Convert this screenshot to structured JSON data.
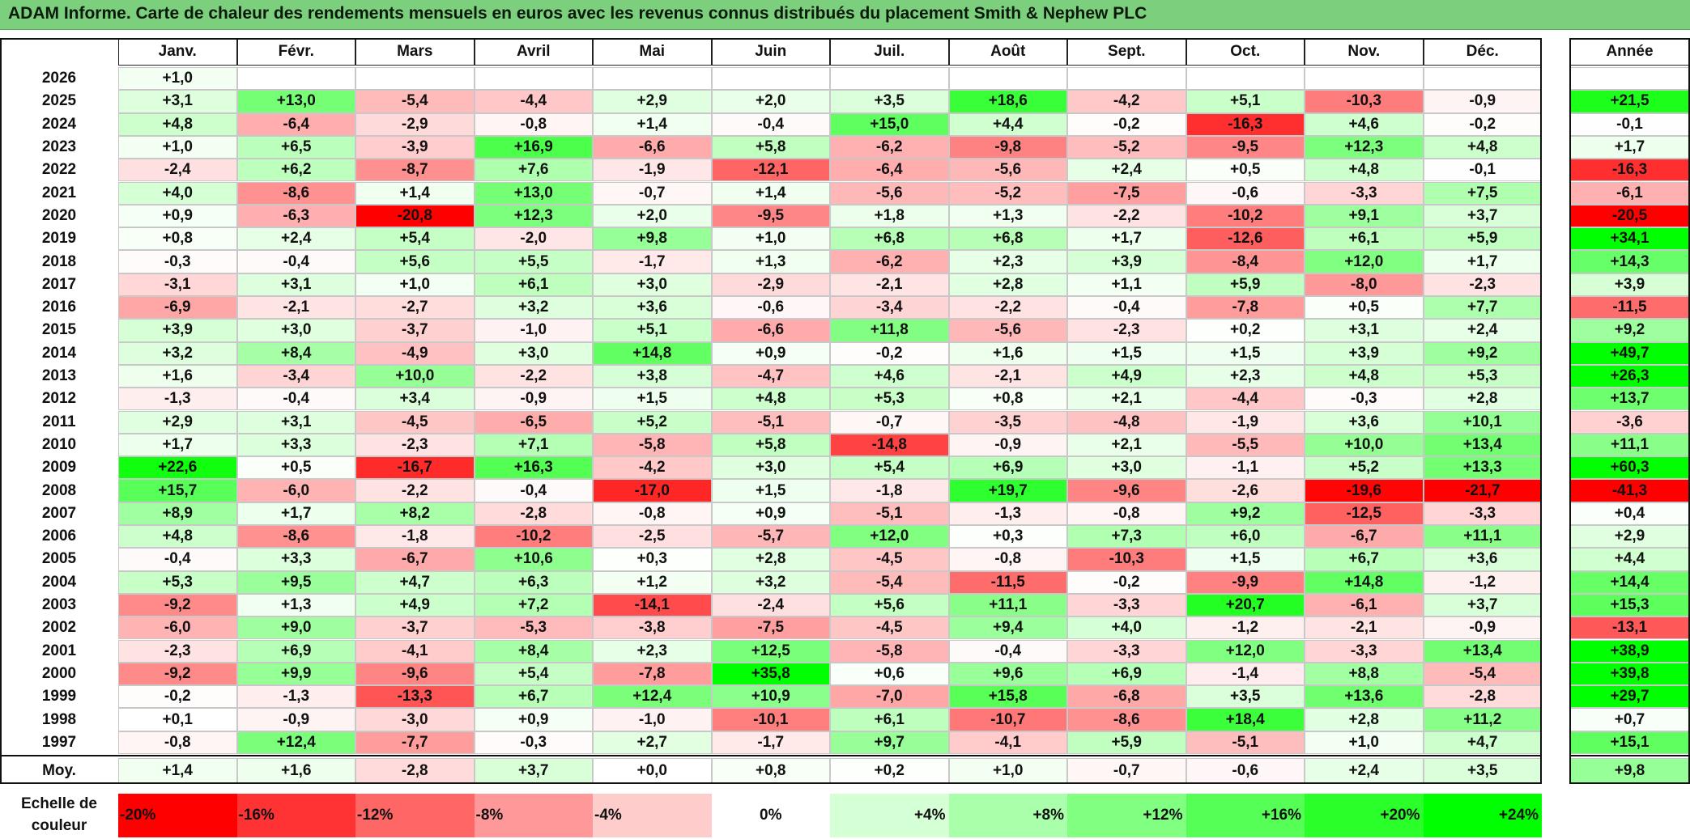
{
  "title": "ADAM Informe. Carte de chaleur des rendements mensuels en euros avec les revenus connus distribués du placement Smith & Nephew PLC",
  "colors": {
    "title_bg": "#7ccf7c",
    "max_red": "#ff0000",
    "max_green": "#00ff00",
    "neutral": "#ffffff"
  },
  "chart_data": {
    "type": "heatmap",
    "months": [
      "Janv.",
      "Févr.",
      "Mars",
      "Avril",
      "Mai",
      "Juin",
      "Juil.",
      "Août",
      "Sept.",
      "Oct.",
      "Nov.",
      "Déc."
    ],
    "year_header": "Année",
    "avg_label": "Moy.",
    "years": [
      "2026",
      "2025",
      "2024",
      "2023",
      "2022",
      "2021",
      "2020",
      "2019",
      "2018",
      "2017",
      "2016",
      "2015",
      "2014",
      "2013",
      "2012",
      "2011",
      "2010",
      "2009",
      "2008",
      "2007",
      "2006",
      "2005",
      "2004",
      "2003",
      "2002",
      "2001",
      "2000",
      "1999",
      "1998",
      "1997"
    ],
    "values": [
      [
        "+1,0",
        "",
        "",
        "",
        "",
        "",
        "",
        "",
        "",
        "",
        "",
        ""
      ],
      [
        "+3,1",
        "+13,0",
        "-5,4",
        "-4,4",
        "+2,9",
        "+2,0",
        "+3,5",
        "+18,6",
        "-4,2",
        "+5,1",
        "-10,3",
        "-0,9"
      ],
      [
        "+4,8",
        "-6,4",
        "-2,9",
        "-0,8",
        "+1,4",
        "-0,4",
        "+15,0",
        "+4,4",
        "-0,2",
        "-16,3",
        "+4,6",
        "-0,2"
      ],
      [
        "+1,0",
        "+6,5",
        "-3,9",
        "+16,9",
        "-6,6",
        "+5,8",
        "-6,2",
        "-9,8",
        "-5,2",
        "-9,5",
        "+12,3",
        "+4,8"
      ],
      [
        "-2,4",
        "+6,2",
        "-8,7",
        "+7,6",
        "-1,9",
        "-12,1",
        "-6,4",
        "-5,6",
        "+2,4",
        "+0,5",
        "+4,8",
        "-0,1"
      ],
      [
        "+4,0",
        "-8,6",
        "+1,4",
        "+13,0",
        "-0,7",
        "+1,4",
        "-5,6",
        "-5,2",
        "-7,5",
        "-0,6",
        "-3,3",
        "+7,5"
      ],
      [
        "+0,9",
        "-6,3",
        "-20,8",
        "+12,3",
        "+2,0",
        "-9,5",
        "+1,8",
        "+1,3",
        "-2,2",
        "-10,2",
        "+9,1",
        "+3,7"
      ],
      [
        "+0,8",
        "+2,4",
        "+5,4",
        "-2,0",
        "+9,8",
        "+1,0",
        "+6,8",
        "+6,8",
        "+1,7",
        "-12,6",
        "+6,1",
        "+5,9"
      ],
      [
        "-0,3",
        "-0,4",
        "+5,6",
        "+5,5",
        "-1,7",
        "+1,3",
        "-6,2",
        "+2,3",
        "+3,9",
        "-8,4",
        "+12,0",
        "+1,7"
      ],
      [
        "-3,1",
        "+3,1",
        "+1,0",
        "+6,1",
        "+3,0",
        "-2,9",
        "-2,1",
        "+2,8",
        "+1,1",
        "+5,9",
        "-8,0",
        "-2,3"
      ],
      [
        "-6,9",
        "-2,1",
        "-2,7",
        "+3,2",
        "+3,6",
        "-0,6",
        "-3,4",
        "-2,2",
        "-0,4",
        "-7,8",
        "+0,5",
        "+7,7"
      ],
      [
        "+3,9",
        "+3,0",
        "-3,7",
        "-1,0",
        "+5,1",
        "-6,6",
        "+11,8",
        "-5,6",
        "-2,3",
        "+0,2",
        "+3,1",
        "+2,4"
      ],
      [
        "+3,2",
        "+8,4",
        "-4,9",
        "+3,0",
        "+14,8",
        "+0,9",
        "-0,2",
        "+1,6",
        "+1,5",
        "+1,5",
        "+3,9",
        "+9,2"
      ],
      [
        "+1,6",
        "-3,4",
        "+10,0",
        "-2,2",
        "+3,8",
        "-4,7",
        "+4,6",
        "-2,1",
        "+4,9",
        "+2,3",
        "+4,8",
        "+5,3"
      ],
      [
        "-1,3",
        "-0,4",
        "+3,4",
        "-0,9",
        "+1,5",
        "+4,8",
        "+5,3",
        "+0,8",
        "+2,1",
        "-4,4",
        "-0,3",
        "+2,8"
      ],
      [
        "+2,9",
        "+3,1",
        "-4,5",
        "-6,5",
        "+5,2",
        "-5,1",
        "-0,7",
        "-3,5",
        "-4,8",
        "-1,9",
        "+3,6",
        "+10,1"
      ],
      [
        "+1,7",
        "+3,3",
        "-2,3",
        "+7,1",
        "-5,8",
        "+5,8",
        "-14,8",
        "-0,9",
        "+2,1",
        "-5,5",
        "+10,0",
        "+13,4"
      ],
      [
        "+22,6",
        "+0,5",
        "-16,7",
        "+16,3",
        "-4,2",
        "+3,0",
        "+5,4",
        "+6,9",
        "+3,0",
        "-1,1",
        "+5,2",
        "+13,3"
      ],
      [
        "+15,7",
        "-6,0",
        "-2,2",
        "-0,4",
        "-17,0",
        "+1,5",
        "-1,8",
        "+19,7",
        "-9,6",
        "-2,6",
        "-19,6",
        "-21,7"
      ],
      [
        "+8,9",
        "+1,7",
        "+8,2",
        "-2,8",
        "-0,8",
        "+0,9",
        "-5,1",
        "-1,3",
        "-0,8",
        "+9,2",
        "-12,5",
        "-3,3"
      ],
      [
        "+4,8",
        "-8,6",
        "-1,8",
        "-10,2",
        "-2,5",
        "-5,7",
        "+12,0",
        "+0,3",
        "+7,3",
        "+6,0",
        "-6,7",
        "+11,1"
      ],
      [
        "-0,4",
        "+3,3",
        "-6,7",
        "+10,6",
        "+0,3",
        "+2,8",
        "-4,5",
        "-0,8",
        "-10,3",
        "+1,5",
        "+6,7",
        "+3,6"
      ],
      [
        "+5,3",
        "+9,5",
        "+4,7",
        "+6,3",
        "+1,2",
        "+3,2",
        "-5,4",
        "-11,5",
        "-0,2",
        "-9,9",
        "+14,8",
        "-1,2"
      ],
      [
        "-9,2",
        "+1,3",
        "+4,9",
        "+7,2",
        "-14,1",
        "-2,4",
        "+5,6",
        "+11,1",
        "-3,3",
        "+20,7",
        "-6,1",
        "+3,7"
      ],
      [
        "-6,0",
        "+9,0",
        "-3,7",
        "-5,3",
        "-3,8",
        "-7,5",
        "-4,5",
        "+9,4",
        "+4,0",
        "-1,2",
        "-2,1",
        "-0,9"
      ],
      [
        "-2,3",
        "+6,9",
        "-4,1",
        "+8,4",
        "+2,3",
        "+12,5",
        "-5,8",
        "-0,4",
        "-3,3",
        "+12,0",
        "-3,3",
        "+13,4"
      ],
      [
        "-9,2",
        "+9,9",
        "-9,6",
        "+5,4",
        "-7,8",
        "+35,8",
        "+0,6",
        "+9,6",
        "+6,9",
        "-1,4",
        "+8,8",
        "-5,4"
      ],
      [
        "-0,2",
        "-1,3",
        "-13,3",
        "+6,7",
        "+12,4",
        "+10,9",
        "-7,0",
        "+15,8",
        "-6,8",
        "+3,5",
        "+13,6",
        "-2,8"
      ],
      [
        "+0,1",
        "-0,9",
        "-3,0",
        "+0,9",
        "-1,0",
        "-10,1",
        "+6,1",
        "-10,7",
        "-8,6",
        "+18,4",
        "+2,8",
        "+11,2"
      ],
      [
        "-0,8",
        "+12,4",
        "-7,7",
        "-0,3",
        "+2,7",
        "-1,7",
        "+9,7",
        "-4,1",
        "+5,9",
        "-5,1",
        "+1,0",
        "+4,7"
      ]
    ],
    "annual": [
      "",
      "+21,5",
      "-0,1",
      "+1,7",
      "-16,3",
      "-6,1",
      "-20,5",
      "+34,1",
      "+14,3",
      "+3,9",
      "-11,5",
      "+9,2",
      "+49,7",
      "+26,3",
      "+13,7",
      "-3,6",
      "+11,1",
      "+60,3",
      "-41,3",
      "+0,4",
      "+2,9",
      "+4,4",
      "+14,4",
      "+15,3",
      "-13,1",
      "+38,9",
      "+39,8",
      "+29,7",
      "+0,7",
      "+15,1"
    ],
    "averages": [
      "+1,4",
      "+1,6",
      "-2,8",
      "+3,7",
      "+0,0",
      "+0,8",
      "+0,2",
      "+1,0",
      "-0,7",
      "-0,6",
      "+2,4",
      "+3,5"
    ],
    "annual_average": "+9,8",
    "scale_title": "Echelle de couleur",
    "scale_labels": [
      "-20%",
      "-16%",
      "-12%",
      "-8%",
      "-4%",
      "0%",
      "+4%",
      "+8%",
      "+12%",
      "+16%",
      "+20%",
      "+24%"
    ],
    "scale_values": [
      -20,
      -16,
      -12,
      -8,
      -4,
      0,
      4,
      8,
      12,
      16,
      20,
      24
    ],
    "color_range": [
      -20,
      24
    ]
  }
}
